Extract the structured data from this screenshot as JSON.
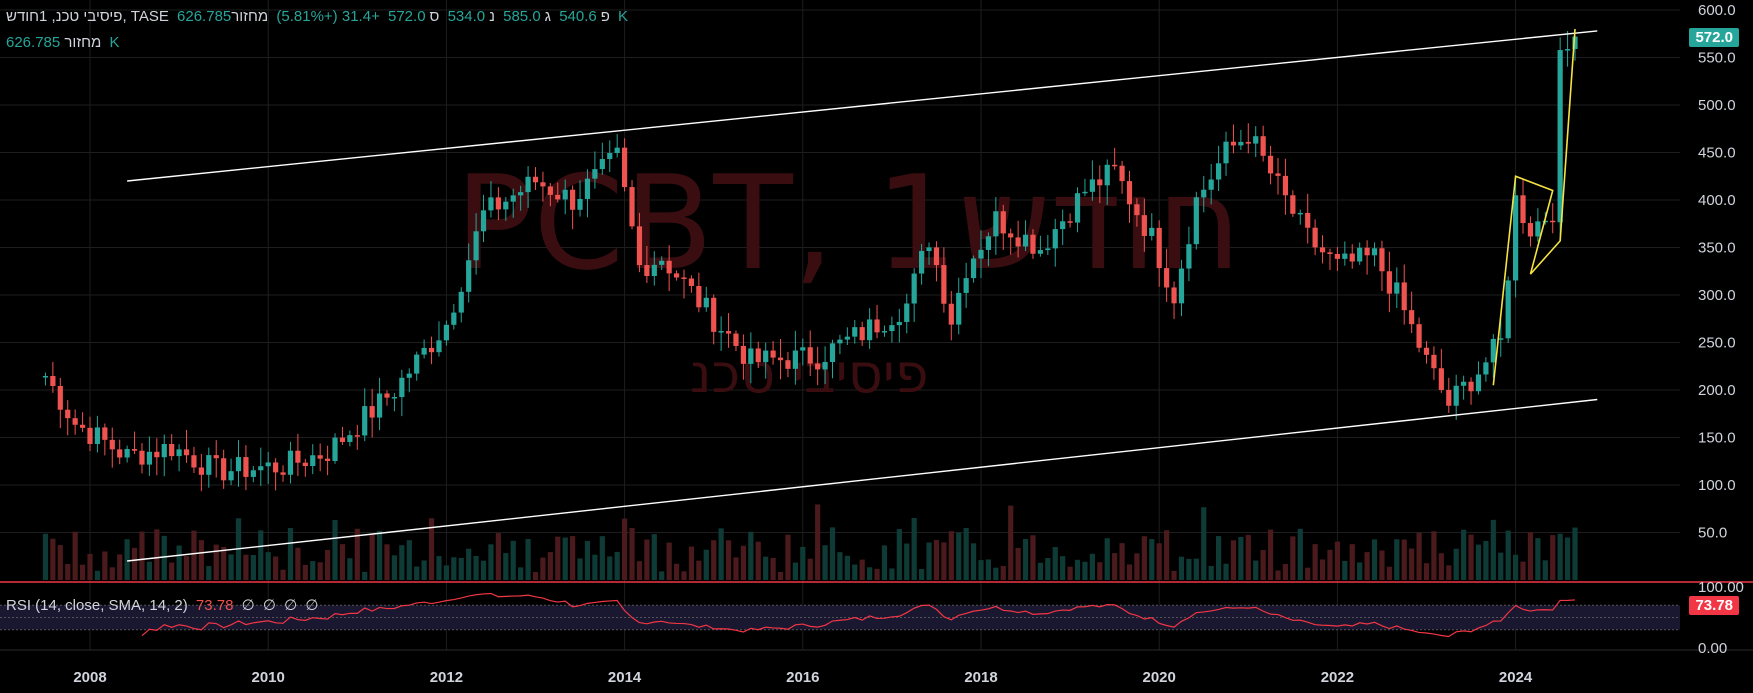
{
  "header": {
    "symbol_line": "פיסיבי טכנ, 1חודש, TASE",
    "open_label": "פ",
    "open_value": "540.6",
    "high_label": "ג",
    "high_value": "585.0",
    "low_label": "נ",
    "low_value": "534.0",
    "close_label": "ס",
    "close_value": "572.0",
    "change": "+31.4 (+5.81%)",
    "volume_label": "מחזור",
    "volume_value": "626.785 K"
  },
  "volume_legend": {
    "label": "מחזור",
    "value": "626.785 K"
  },
  "rsi_legend": {
    "title": "RSI (14, close, SMA, 14, 2)",
    "value": "73.78",
    "extra": [
      "∅",
      "∅",
      "∅",
      "∅"
    ]
  },
  "watermark": {
    "ticker": "PCBT, 1חודש",
    "name": "פיסיבי טכנ"
  },
  "price_badge": "572.0",
  "rsi_badge": "73.78",
  "colors": {
    "up": "#26a69a",
    "down": "#ef5350",
    "rsi": "#f23645",
    "channel": "#ffffff",
    "pattern": "#f5e342"
  },
  "chart_data": {
    "type": "candlestick",
    "price_axis": {
      "ticks": [
        "600.0",
        "550.0",
        "500.0",
        "450.0",
        "400.0",
        "350.0",
        "300.0",
        "250.0",
        "200.0",
        "150.0",
        "100.0",
        "50.0"
      ],
      "range": [
        0,
        600
      ]
    },
    "x_ticks": [
      "2008",
      "2010",
      "2012",
      "2014",
      "2016",
      "2018",
      "2020",
      "2022",
      "2024"
    ],
    "rsi_axis": {
      "ticks": [
        "100.00",
        "0.00"
      ],
      "range": [
        0,
        100
      ]
    },
    "anchors": [
      [
        "2007-07",
        215
      ],
      [
        "2007-11",
        165
      ],
      [
        "2008-06",
        130
      ],
      [
        "2008-12",
        140
      ],
      [
        "2009-06",
        115
      ],
      [
        "2010-03",
        120
      ],
      [
        "2010-09",
        135
      ],
      [
        "2011-06",
        200
      ],
      [
        "2012-01",
        270
      ],
      [
        "2012-06",
        385
      ],
      [
        "2013-01",
        420
      ],
      [
        "2013-06",
        400
      ],
      [
        "2013-12",
        445
      ],
      [
        "2014-03",
        330
      ],
      [
        "2014-06",
        340
      ],
      [
        "2015-01",
        275
      ],
      [
        "2015-06",
        230
      ],
      [
        "2016-03",
        235
      ],
      [
        "2016-09",
        260
      ],
      [
        "2017-03",
        290
      ],
      [
        "2017-06",
        360
      ],
      [
        "2017-09",
        275
      ],
      [
        "2017-11",
        330
      ],
      [
        "2018-03",
        380
      ],
      [
        "2018-09",
        350
      ],
      [
        "2019-03",
        410
      ],
      [
        "2019-07",
        430
      ],
      [
        "2019-12",
        360
      ],
      [
        "2020-03",
        300
      ],
      [
        "2020-06",
        400
      ],
      [
        "2020-10",
        450
      ],
      [
        "2021-01",
        470
      ],
      [
        "2021-06",
        400
      ],
      [
        "2021-09",
        360
      ],
      [
        "2022-01",
        330
      ],
      [
        "2022-06",
        340
      ],
      [
        "2022-09",
        300
      ],
      [
        "2023-01",
        230
      ],
      [
        "2023-04",
        185
      ],
      [
        "2023-08",
        220
      ],
      [
        "2023-11",
        250
      ],
      [
        "2024-01",
        400
      ],
      [
        "2024-03",
        370
      ],
      [
        "2024-06",
        390
      ],
      [
        "2024-07",
        545
      ],
      [
        "2024-09",
        572
      ]
    ],
    "channel": [
      {
        "from": [
          "2008-06",
          420
        ],
        "to": [
          "2024-12",
          578
        ]
      },
      {
        "from": [
          "2008-06",
          20
        ],
        "to": [
          "2024-12",
          190
        ]
      }
    ],
    "pattern": [
      [
        "2023-10",
        205
      ],
      [
        "2024-01",
        425
      ],
      [
        "2024-06",
        410
      ],
      [
        "2024-03",
        322
      ],
      [
        "2024-07",
        357
      ],
      [
        "2024-09",
        580
      ]
    ]
  }
}
